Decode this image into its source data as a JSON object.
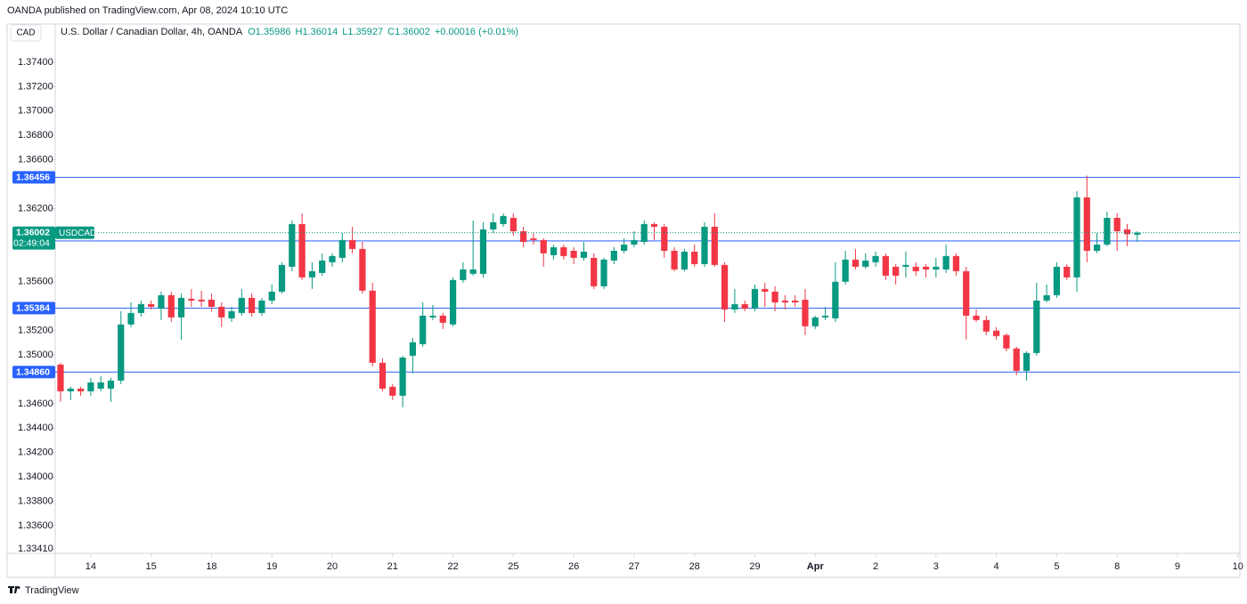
{
  "header": "OANDA published on TradingView.com, Apr 08, 2024 10:10 UTC",
  "currency": "CAD",
  "footer": "TradingView",
  "chart_data": {
    "type": "candlestick",
    "title": "U.S. Dollar / Canadian Dollar, 4h, OANDA",
    "ohlc_labels": [
      "O1.35986",
      "H1.36014",
      "L1.35927",
      "C1.36002",
      "+0.00016 (+0.01%)"
    ],
    "symbol": "USDCAD",
    "countdown": "02:49:04",
    "up_color": "#089981",
    "down_color": "#f23645",
    "level_color": "#2962ff",
    "open": [
      1.34921,
      1.34702,
      1.34724,
      1.34702,
      1.34724,
      1.34724,
      1.3479,
      1.3525,
      1.35344,
      1.35417,
      1.3538,
      1.3549,
      1.35308,
      1.35461,
      1.35453,
      1.35453,
      1.35395,
      1.353,
      1.35344,
      1.35468,
      1.35344,
      1.35446,
      1.35519,
      1.35723,
      1.36073,
      1.35636,
      1.35672,
      1.3576,
      1.35796,
      1.35942,
      1.35869,
      1.35527,
      1.34936,
      1.34739,
      1.34666,
      1.34994,
      1.35089,
      1.35308,
      1.35322,
      1.3525,
      1.35614,
      1.35665,
      1.35665,
      1.36029,
      1.36073,
      1.36124,
      1.36014,
      1.35956,
      1.35942,
      1.35818,
      1.35883,
      1.35854,
      1.35796,
      1.35796,
      1.35563,
      1.35774,
      1.35854,
      1.35905,
      1.35927,
      1.36073,
      1.36051,
      1.35854,
      1.35701,
      1.35847,
      1.35745,
      1.36051,
      1.35738,
      1.35373,
      1.35417,
      1.3538,
      1.35541,
      1.35519,
      1.35446,
      1.35446,
      1.35453,
      1.35235,
      1.35308,
      1.353,
      1.356,
      1.35782,
      1.35723,
      1.3576,
      1.35811,
      1.35723,
      1.35723,
      1.35723,
      1.35723,
      1.35701,
      1.35701,
      1.35811,
      1.35687,
      1.35322,
      1.35286,
      1.35199,
      1.35163,
      1.35053,
      1.3487,
      1.35016,
      1.35446,
      1.3549,
      1.35723,
      1.35636,
      1.36292,
      1.35854,
      1.35905,
      1.36124,
      1.36029,
      1.35986
    ],
    "high": [
      1.34936,
      1.34739,
      1.34739,
      1.34812,
      1.34826,
      1.34812,
      1.35359,
      1.35431,
      1.35446,
      1.35446,
      1.35519,
      1.35519,
      1.35504,
      1.35541,
      1.35527,
      1.35504,
      1.35431,
      1.35395,
      1.35541,
      1.35504,
      1.35468,
      1.35578,
      1.3576,
      1.36102,
      1.3616,
      1.3576,
      1.35833,
      1.35833,
      1.36,
      1.36051,
      1.35927,
      1.35592,
      1.34972,
      1.34761,
      1.34994,
      1.3514,
      1.35431,
      1.3541,
      1.35344,
      1.35636,
      1.3576,
      1.36102,
      1.36088,
      1.3616,
      1.3616,
      1.3616,
      1.36051,
      1.36,
      1.35956,
      1.35905,
      1.35905,
      1.35883,
      1.35927,
      1.35833,
      1.35796,
      1.35883,
      1.35956,
      1.36014,
      1.36102,
      1.36088,
      1.36073,
      1.35883,
      1.35869,
      1.35905,
      1.36088,
      1.3616,
      1.3576,
      1.35541,
      1.35446,
      1.35578,
      1.35592,
      1.35563,
      1.3549,
      1.3549,
      1.35541,
      1.35322,
      1.35395,
      1.3576,
      1.35854,
      1.35869,
      1.35833,
      1.35847,
      1.35833,
      1.35745,
      1.35847,
      1.3576,
      1.35745,
      1.35796,
      1.35905,
      1.35833,
      1.35723,
      1.35373,
      1.35322,
      1.35228,
      1.35177,
      1.35067,
      1.3503,
      1.35592,
      1.35578,
      1.3576,
      1.35745,
      1.36343,
      1.3647,
      1.36,
      1.36175,
      1.3616,
      1.36073,
      1.36014
    ],
    "low": [
      1.34615,
      1.3463,
      1.34666,
      1.34666,
      1.34702,
      1.34615,
      1.34761,
      1.35228,
      1.35315,
      1.35373,
      1.35286,
      1.35271,
      1.35126,
      1.35395,
      1.35395,
      1.35359,
      1.35228,
      1.35271,
      1.35322,
      1.35315,
      1.35322,
      1.35417,
      1.35504,
      1.35687,
      1.35614,
      1.35541,
      1.3565,
      1.35723,
      1.3576,
      1.35833,
      1.35504,
      1.34907,
      1.34702,
      1.3463,
      1.34571,
      1.34848,
      1.35067,
      1.35286,
      1.35213,
      1.35235,
      1.35592,
      1.3565,
      1.35636,
      1.36,
      1.36051,
      1.35978,
      1.35883,
      1.35905,
      1.35723,
      1.35782,
      1.35782,
      1.35745,
      1.35774,
      1.35541,
      1.35541,
      1.35745,
      1.35833,
      1.35883,
      1.35905,
      1.35942,
      1.35796,
      1.35687,
      1.35687,
      1.35723,
      1.35723,
      1.35723,
      1.35271,
      1.35344,
      1.35359,
      1.35359,
      1.35395,
      1.35359,
      1.35373,
      1.35395,
      1.35163,
      1.35213,
      1.35286,
      1.35271,
      1.35578,
      1.35701,
      1.35708,
      1.35723,
      1.35614,
      1.35578,
      1.35636,
      1.3565,
      1.35636,
      1.35636,
      1.35672,
      1.3565,
      1.35126,
      1.35271,
      1.35163,
      1.35126,
      1.3503,
      1.34834,
      1.3479,
      1.34994,
      1.35431,
      1.35468,
      1.35614,
      1.35519,
      1.3576,
      1.35833,
      1.35891,
      1.35854,
      1.35891,
      1.35927
    ],
    "close": [
      1.34702,
      1.34724,
      1.34702,
      1.34775,
      1.34775,
      1.3479,
      1.3525,
      1.35344,
      1.35417,
      1.35395,
      1.3549,
      1.35308,
      1.35468,
      1.35446,
      1.35439,
      1.35395,
      1.35308,
      1.35359,
      1.35468,
      1.35344,
      1.35446,
      1.35519,
      1.35738,
      1.36073,
      1.35636,
      1.35687,
      1.35774,
      1.35811,
      1.35942,
      1.35869,
      1.35527,
      1.34936,
      1.34724,
      1.34666,
      1.34979,
      1.35104,
      1.35322,
      1.35322,
      1.35264,
      1.35614,
      1.35701,
      1.35701,
      1.36029,
      1.36088,
      1.36139,
      1.36014,
      1.35927,
      1.35942,
      1.35833,
      1.35883,
      1.35811,
      1.35796,
      1.35847,
      1.35563,
      1.35782,
      1.35854,
      1.35905,
      1.35942,
      1.36073,
      1.36051,
      1.35854,
      1.35701,
      1.35847,
      1.35745,
      1.36051,
      1.35738,
      1.35373,
      1.35417,
      1.3538,
      1.35541,
      1.35519,
      1.35431,
      1.35431,
      1.35431,
      1.35235,
      1.35308,
      1.35322,
      1.356,
      1.35782,
      1.35723,
      1.35774,
      1.35811,
      1.3565,
      1.3565,
      1.35738,
      1.35687,
      1.35701,
      1.35723,
      1.35811,
      1.35687,
      1.35322,
      1.35286,
      1.35192,
      1.35155,
      1.35053,
      1.3487,
      1.35016,
      1.35446,
      1.3549,
      1.35723,
      1.35636,
      1.36292,
      1.35854,
      1.35905,
      1.36124,
      1.36014,
      1.3599,
      1.36002
    ],
    "ylim": [
      1.33374,
      1.37706
    ],
    "yticks": [
      {
        "value": 1.374,
        "label": "1.37400"
      },
      {
        "value": 1.372,
        "label": "1.37200"
      },
      {
        "value": 1.37,
        "label": "1.37000"
      },
      {
        "value": 1.368,
        "label": "1.36800"
      },
      {
        "value": 1.366,
        "label": "1.36600"
      },
      {
        "value": 1.362,
        "label": "1.36200"
      },
      {
        "value": 1.356,
        "label": "1.35600"
      },
      {
        "value": 1.352,
        "label": "1.35200"
      },
      {
        "value": 1.35,
        "label": "1.35000"
      },
      {
        "value": 1.346,
        "label": "1.34600"
      },
      {
        "value": 1.344,
        "label": "1.34400"
      },
      {
        "value": 1.342,
        "label": "1.34200"
      },
      {
        "value": 1.34,
        "label": "1.34000"
      },
      {
        "value": 1.338,
        "label": "1.33800"
      },
      {
        "value": 1.336,
        "label": "1.33600"
      },
      {
        "value": 1.3341,
        "label": "1.33410"
      }
    ],
    "xlim": [
      -0.53,
      117.2
    ],
    "xticks": [
      {
        "value": 3,
        "label": "14"
      },
      {
        "value": 9,
        "label": "15"
      },
      {
        "value": 15,
        "label": "18"
      },
      {
        "value": 21,
        "label": "19"
      },
      {
        "value": 27,
        "label": "20"
      },
      {
        "value": 33,
        "label": "21"
      },
      {
        "value": 39,
        "label": "22"
      },
      {
        "value": 45,
        "label": "25"
      },
      {
        "value": 51,
        "label": "26"
      },
      {
        "value": 57,
        "label": "27"
      },
      {
        "value": 63,
        "label": "28"
      },
      {
        "value": 69,
        "label": "29"
      },
      {
        "value": 75,
        "label": "Apr"
      },
      {
        "value": 81,
        "label": "2"
      },
      {
        "value": 87,
        "label": "3"
      },
      {
        "value": 93,
        "label": "4"
      },
      {
        "value": 99,
        "label": "5"
      },
      {
        "value": 105,
        "label": "8"
      },
      {
        "value": 111,
        "label": "9"
      },
      {
        "value": 117,
        "label": "10"
      }
    ],
    "levels": [
      1.36456,
      1.35935,
      1.35384,
      {
        "value": 1.3486,
        "label": "1.34860"
      }
    ]
  }
}
